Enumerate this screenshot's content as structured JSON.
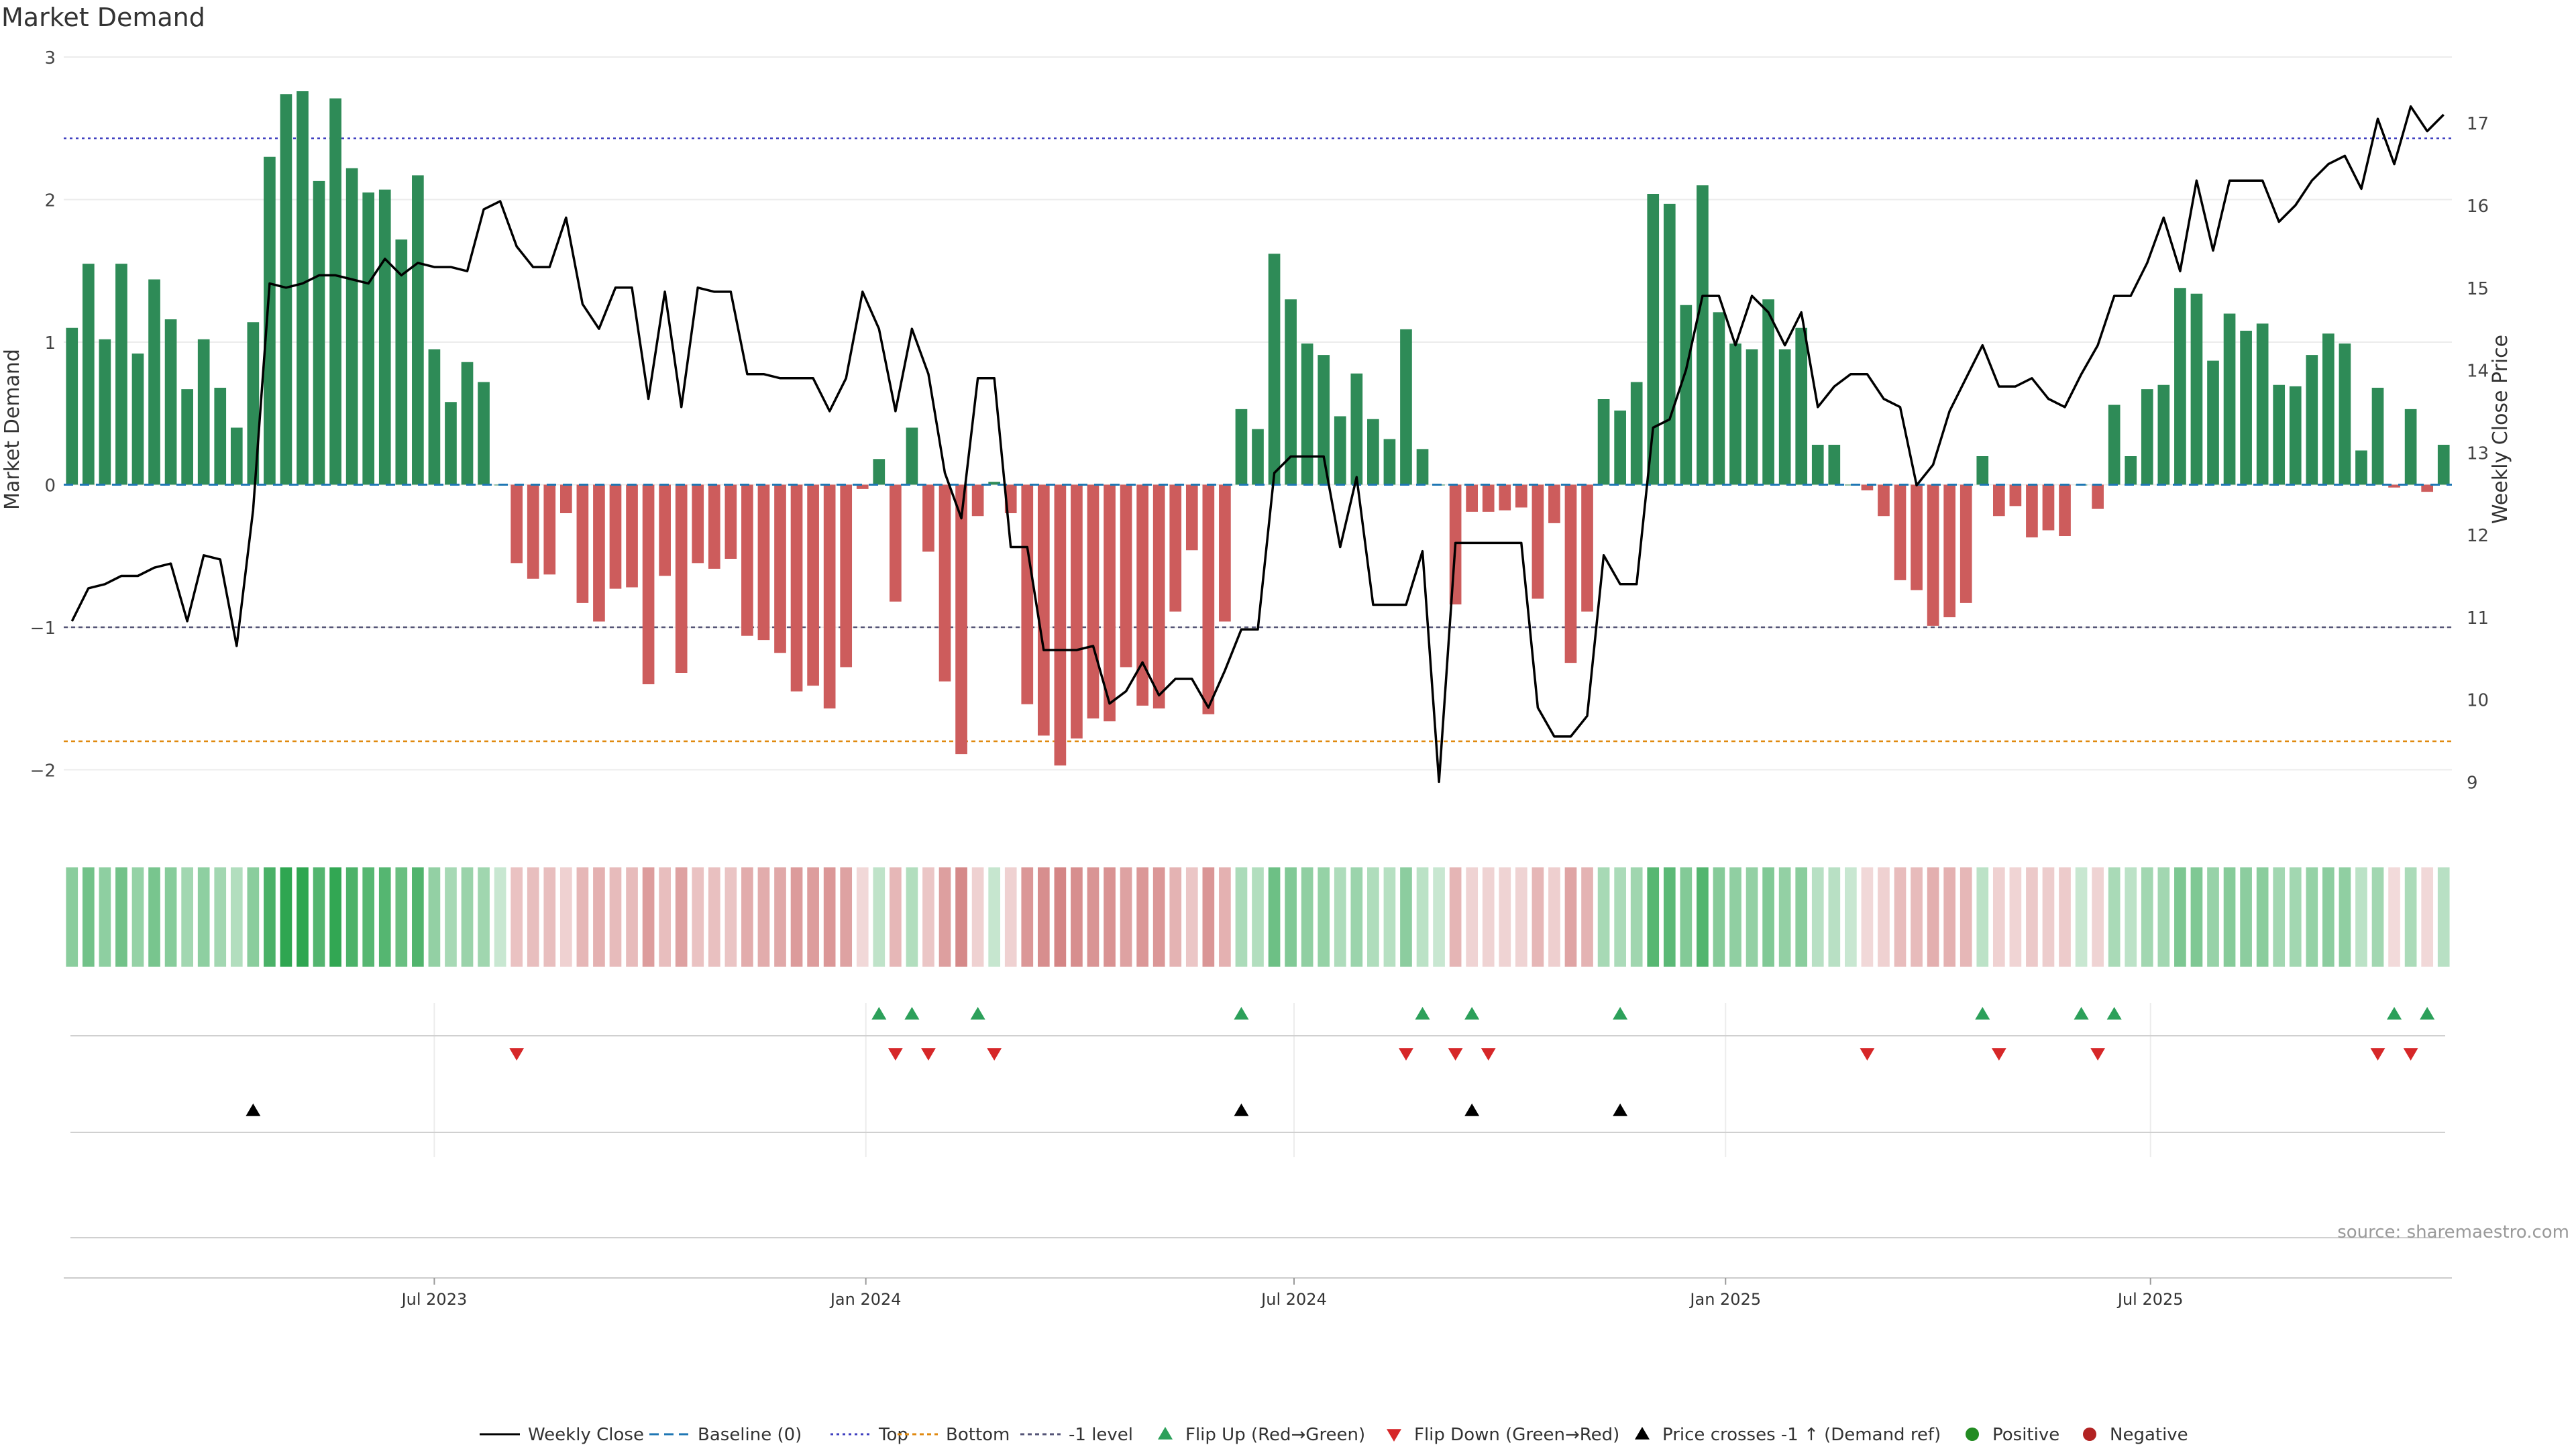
{
  "title": "Market Demand",
  "source_note": "source: sharemaestro.com",
  "colors": {
    "positive": "#2e8b57",
    "negative": "#cd5c5c",
    "price": "#000000",
    "top_line": "#4040c0",
    "bottom_line": "#e08a10",
    "minus_one_line": "#555577",
    "baseline": "#1f77b4",
    "flip_up": "#2ca05a",
    "flip_down": "#d62728",
    "cross": "#000000",
    "legend_positive": "#228b22",
    "legend_negative": "#b22222"
  },
  "chart_data": {
    "type": "bar",
    "title": "Market Demand",
    "ylabel": "Market Demand",
    "y2label": "Weekly Close Price",
    "ylim": [
      -2.2,
      3.0
    ],
    "y2lim": [
      8.8,
      17.8
    ],
    "yticks": [
      3,
      2,
      1,
      0,
      -1,
      -2
    ],
    "ytick_labels": [
      "3",
      "2",
      "1",
      "0",
      "−1",
      "−2"
    ],
    "y2ticks": [
      17,
      16,
      15,
      14,
      13,
      12,
      11,
      10,
      9
    ],
    "y2tick_labels": [
      "17",
      "16",
      "15",
      "14",
      "13",
      "12",
      "11",
      "10",
      "9"
    ],
    "reference_lines": {
      "top": 2.43,
      "bottom": -1.8,
      "minus_one": -1.0,
      "baseline": 0
    },
    "x_ticks": [
      {
        "label": "Jul 2023",
        "week": 22
      },
      {
        "label": "Jan 2024",
        "week": 48.2
      },
      {
        "label": "Jul 2024",
        "week": 74.2
      },
      {
        "label": "Jan 2025",
        "week": 100.4
      },
      {
        "label": "Jul 2025",
        "week": 126.2
      }
    ],
    "demand": [
      1.1,
      1.55,
      1.02,
      1.55,
      0.92,
      1.44,
      1.16,
      0.67,
      1.02,
      0.68,
      0.4,
      1.14,
      2.3,
      2.74,
      2.76,
      2.13,
      2.71,
      2.22,
      2.05,
      2.07,
      1.72,
      2.17,
      0.95,
      0.58,
      0.86,
      0.72,
      0.0,
      -0.55,
      -0.66,
      -0.63,
      -0.2,
      -0.83,
      -0.96,
      -0.73,
      -0.72,
      -1.4,
      -0.64,
      -1.32,
      -0.55,
      -0.59,
      -0.52,
      -1.06,
      -1.09,
      -1.18,
      -1.45,
      -1.41,
      -1.57,
      -1.28,
      -0.03,
      0.18,
      -0.82,
      0.4,
      -0.47,
      -1.38,
      -1.89,
      -0.22,
      0.02,
      -0.2,
      -1.54,
      -1.76,
      -1.97,
      -1.78,
      -1.64,
      -1.66,
      -1.28,
      -1.55,
      -1.57,
      -0.89,
      -0.46,
      -1.61,
      -0.96,
      0.53,
      0.39,
      1.62,
      1.3,
      0.99,
      0.91,
      0.48,
      0.78,
      0.46,
      0.32,
      1.09,
      0.25,
      0.0,
      -0.84,
      -0.19,
      -0.19,
      -0.18,
      -0.16,
      -0.8,
      -0.27,
      -1.25,
      -0.89,
      0.6,
      0.52,
      0.72,
      2.04,
      1.97,
      1.26,
      2.1,
      1.21,
      0.99,
      0.95,
      1.3,
      0.95,
      1.1,
      0.28,
      0.28,
      0.0,
      -0.04,
      -0.22,
      -0.67,
      -0.74,
      -0.99,
      -0.93,
      -0.83,
      0.2,
      -0.22,
      -0.15,
      -0.37,
      -0.32,
      -0.36,
      0.0,
      -0.17,
      0.56,
      0.2,
      0.67,
      0.7,
      1.38,
      1.34,
      0.87,
      1.2,
      1.08,
      1.13,
      0.7,
      0.69,
      0.91,
      1.06,
      0.99,
      0.24,
      0.68,
      -0.02,
      0.53,
      -0.05,
      0.28
    ],
    "price": [
      10.95,
      11.35,
      11.4,
      11.5,
      11.5,
      11.6,
      11.65,
      10.95,
      11.75,
      11.7,
      10.65,
      12.3,
      15.05,
      15.0,
      15.05,
      15.15,
      15.15,
      15.1,
      15.05,
      15.35,
      15.15,
      15.3,
      15.25,
      15.25,
      15.2,
      15.95,
      16.05,
      15.5,
      15.25,
      15.25,
      15.85,
      14.8,
      14.5,
      15.0,
      15.0,
      13.65,
      14.95,
      13.55,
      15.0,
      14.95,
      14.95,
      13.95,
      13.95,
      13.9,
      13.9,
      13.9,
      13.5,
      13.9,
      14.95,
      14.5,
      13.5,
      14.5,
      13.95,
      12.75,
      12.2,
      13.9,
      13.9,
      11.85,
      11.85,
      10.6,
      10.6,
      10.6,
      10.65,
      9.95,
      10.1,
      10.45,
      10.05,
      10.25,
      10.25,
      9.9,
      10.35,
      10.85,
      10.85,
      12.75,
      12.95,
      12.95,
      12.95,
      11.85,
      12.7,
      11.15,
      11.15,
      11.15,
      11.8,
      9.0,
      11.9,
      11.9,
      11.9,
      11.9,
      11.9,
      9.9,
      9.55,
      9.55,
      9.8,
      11.75,
      11.4,
      11.4,
      13.3,
      13.4,
      14.0,
      14.9,
      14.9,
      14.3,
      14.9,
      14.7,
      14.3,
      14.7,
      13.55,
      13.8,
      13.95,
      13.95,
      13.65,
      13.55,
      12.6,
      12.85,
      13.5,
      13.9,
      14.3,
      13.8,
      13.8,
      13.9,
      13.65,
      13.55,
      13.95,
      14.3,
      14.9,
      14.9,
      15.3,
      15.85,
      15.2,
      16.3,
      15.45,
      16.3,
      16.3,
      16.3,
      15.8,
      16.0,
      16.3,
      16.5,
      16.6,
      16.2,
      17.05,
      16.5,
      17.2,
      16.9,
      17.1
    ],
    "series": [
      {
        "name": "Weekly Close",
        "legend": "Weekly Close"
      },
      {
        "name": "Baseline (0)",
        "legend": "Baseline (0)"
      },
      {
        "name": "Top",
        "legend": "Top"
      },
      {
        "name": "Bottom",
        "legend": "Bottom"
      },
      {
        "name": "-1 level",
        "legend": "-1 level"
      }
    ],
    "flip_up_weeks": [
      49,
      51,
      55,
      71,
      82,
      85,
      94,
      116,
      122,
      124,
      141,
      143
    ],
    "flip_down_weeks": [
      27,
      50,
      52,
      56,
      81,
      84,
      86,
      109,
      117,
      123,
      140,
      142
    ],
    "price_cross_weeks": [
      11,
      71,
      85,
      94
    ]
  },
  "legend": [
    {
      "key": "weekly_close",
      "label": "Weekly Close"
    },
    {
      "key": "baseline",
      "label": "Baseline (0)"
    },
    {
      "key": "top",
      "label": "Top"
    },
    {
      "key": "bottom",
      "label": "Bottom"
    },
    {
      "key": "minus_one",
      "label": "-1 level"
    },
    {
      "key": "flip_up",
      "label": "Flip Up (Red→Green)"
    },
    {
      "key": "flip_down",
      "label": "Flip Down (Green→Red)"
    },
    {
      "key": "cross",
      "label": "Price crosses -1 ↑ (Demand ref)"
    },
    {
      "key": "positive",
      "label": "Positive"
    },
    {
      "key": "negative",
      "label": "Negative"
    }
  ]
}
